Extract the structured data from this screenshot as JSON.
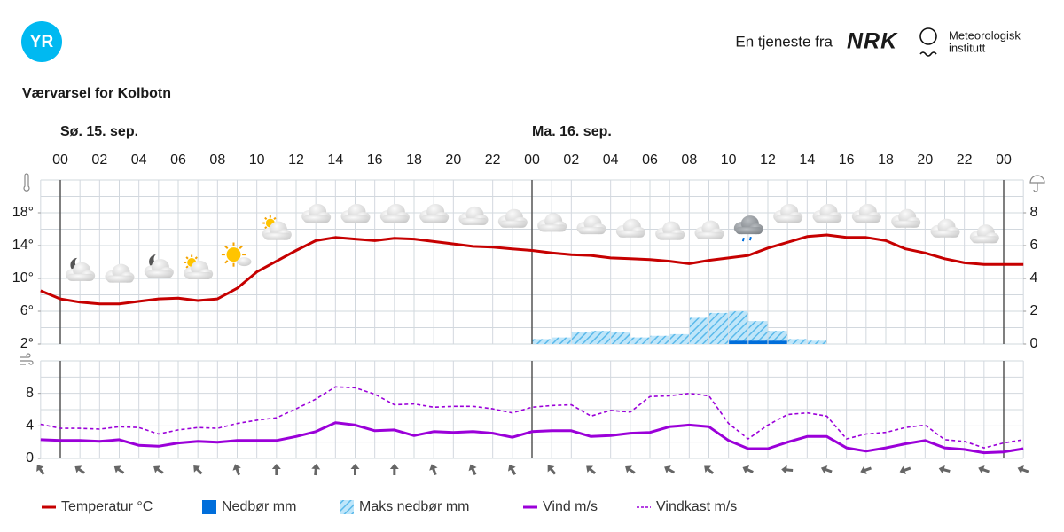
{
  "header": {
    "brand": "YR",
    "service_text": "En tjeneste fra",
    "partner": "NRK",
    "institute_line1": "Meteorologisk",
    "institute_line2": "institutt"
  },
  "chart_data": [
    {
      "type": "line",
      "title": "Værvarsel for Kolbotn",
      "day_labels": [
        {
          "value": 0,
          "label": "Sø. 15. sep."
        },
        {
          "value": 24,
          "label": "Ma. 16. sep."
        }
      ],
      "day_lines": [
        0,
        24,
        48
      ],
      "xlim": [
        -1,
        49
      ],
      "xticks": [
        {
          "value": 0,
          "label": "00"
        },
        {
          "value": 2,
          "label": "02"
        },
        {
          "value": 4,
          "label": "04"
        },
        {
          "value": 6,
          "label": "06"
        },
        {
          "value": 8,
          "label": "08"
        },
        {
          "value": 10,
          "label": "10"
        },
        {
          "value": 12,
          "label": "12"
        },
        {
          "value": 14,
          "label": "14"
        },
        {
          "value": 16,
          "label": "16"
        },
        {
          "value": 18,
          "label": "18"
        },
        {
          "value": 20,
          "label": "20"
        },
        {
          "value": 22,
          "label": "22"
        },
        {
          "value": 24,
          "label": "00"
        },
        {
          "value": 26,
          "label": "02"
        },
        {
          "value": 28,
          "label": "04"
        },
        {
          "value": 30,
          "label": "06"
        },
        {
          "value": 32,
          "label": "08"
        },
        {
          "value": 34,
          "label": "10"
        },
        {
          "value": 36,
          "label": "12"
        },
        {
          "value": 38,
          "label": "14"
        },
        {
          "value": 40,
          "label": "16"
        },
        {
          "value": 42,
          "label": "18"
        },
        {
          "value": 44,
          "label": "20"
        },
        {
          "value": 46,
          "label": "22"
        },
        {
          "value": 48,
          "label": "00"
        }
      ],
      "ylim": [
        2,
        22
      ],
      "yticks": [
        {
          "value": 2,
          "label": "2°"
        },
        {
          "value": 6,
          "label": "6°"
        },
        {
          "value": 10,
          "label": "10°"
        },
        {
          "value": 14,
          "label": "14°"
        },
        {
          "value": 18,
          "label": "18°"
        }
      ],
      "y2lim": [
        0,
        10
      ],
      "y2ticks": [
        0,
        2,
        4,
        6,
        8
      ],
      "grid": true,
      "series": [
        {
          "name": "Temperatur °C",
          "type": "line",
          "color": "#c60000",
          "x": [
            -1,
            0,
            1,
            2,
            3,
            4,
            5,
            6,
            7,
            8,
            9,
            10,
            11,
            12,
            13,
            14,
            15,
            16,
            17,
            18,
            19,
            20,
            21,
            22,
            23,
            24,
            25,
            26,
            27,
            28,
            29,
            30,
            31,
            32,
            33,
            34,
            35,
            36,
            37,
            38,
            39,
            40,
            41,
            42,
            43,
            44,
            45,
            46,
            47,
            48,
            49
          ],
          "values": [
            8.5,
            7.5,
            7.1,
            6.9,
            6.9,
            7.2,
            7.5,
            7.6,
            7.3,
            7.5,
            8.8,
            10.8,
            12.1,
            13.4,
            14.6,
            15.0,
            14.8,
            14.6,
            14.9,
            14.8,
            14.5,
            14.2,
            13.9,
            13.8,
            13.6,
            13.4,
            13.1,
            12.9,
            12.8,
            12.5,
            12.4,
            12.3,
            12.1,
            11.8,
            12.2,
            12.5,
            12.8,
            13.7,
            14.4,
            15.1,
            15.3,
            15.0,
            15.0,
            14.6,
            13.6,
            13.1,
            12.4,
            11.9,
            11.7,
            11.7,
            11.7
          ]
        },
        {
          "name": "Nedbør mm",
          "type": "bar",
          "axis": "y2",
          "color": "#006edb",
          "x": [
            34,
            35,
            36
          ],
          "values": [
            0.2,
            0.2,
            0.2
          ]
        },
        {
          "name": "Maks nedbør mm",
          "type": "hatched-bar",
          "axis": "y2",
          "color": "#5ab9ea",
          "x": [
            24,
            25,
            26,
            27,
            28,
            29,
            30,
            31,
            32,
            33,
            34,
            35,
            36,
            37,
            38
          ],
          "values": [
            0.3,
            0.4,
            0.7,
            0.8,
            0.7,
            0.4,
            0.5,
            0.6,
            1.6,
            1.9,
            2.0,
            1.4,
            0.8,
            0.3,
            0.2
          ]
        }
      ],
      "symbols": {
        "x": [
          1,
          3,
          5,
          7,
          9,
          11,
          13,
          15,
          17,
          19,
          21,
          23,
          25,
          27,
          29,
          31,
          33,
          35,
          37,
          39,
          41,
          43,
          45,
          47
        ],
        "kinds": [
          "night-partly",
          "cloudy",
          "night-partly",
          "day-partly",
          "day-fair",
          "day-partly",
          "cloudy",
          "cloudy",
          "cloudy",
          "cloudy",
          "cloudy",
          "cloudy",
          "cloudy",
          "cloudy",
          "cloudy",
          "cloudy",
          "cloudy",
          "rain",
          "cloudy",
          "cloudy",
          "cloudy",
          "cloudy",
          "cloudy",
          "cloudy"
        ]
      }
    },
    {
      "type": "line",
      "xlim": [
        -1,
        49
      ],
      "ylim": [
        0,
        12
      ],
      "yticks": [
        0,
        4,
        8
      ],
      "grid": true,
      "series": [
        {
          "name": "Vind m/s",
          "color": "#9b00d9",
          "dash": false,
          "x": [
            -1,
            0,
            1,
            2,
            3,
            4,
            5,
            6,
            7,
            8,
            9,
            10,
            11,
            12,
            13,
            14,
            15,
            16,
            17,
            18,
            19,
            20,
            21,
            22,
            23,
            24,
            25,
            26,
            27,
            28,
            29,
            30,
            31,
            32,
            33,
            34,
            35,
            36,
            37,
            38,
            39,
            40,
            41,
            42,
            43,
            44,
            45,
            46,
            47,
            48,
            49
          ],
          "values": [
            2.3,
            2.2,
            2.2,
            2.1,
            2.3,
            1.6,
            1.5,
            1.9,
            2.1,
            2.0,
            2.2,
            2.2,
            2.2,
            2.7,
            3.3,
            4.4,
            4.1,
            3.4,
            3.5,
            2.8,
            3.3,
            3.2,
            3.3,
            3.1,
            2.6,
            3.3,
            3.4,
            3.4,
            2.7,
            2.8,
            3.1,
            3.2,
            3.9,
            4.1,
            3.9,
            2.2,
            1.2,
            1.2,
            2.0,
            2.7,
            2.7,
            1.3,
            0.9,
            1.3,
            1.8,
            2.2,
            1.3,
            1.1,
            0.7,
            0.8,
            1.2
          ]
        },
        {
          "name": "Vindkast m/s",
          "color": "#9b00d9",
          "dash": true,
          "x": [
            -1,
            0,
            1,
            2,
            3,
            4,
            5,
            6,
            7,
            8,
            9,
            10,
            11,
            12,
            13,
            14,
            15,
            16,
            17,
            18,
            19,
            20,
            21,
            22,
            23,
            24,
            25,
            26,
            27,
            28,
            29,
            30,
            31,
            32,
            33,
            34,
            35,
            36,
            37,
            38,
            39,
            40,
            41,
            42,
            43,
            44,
            45,
            46,
            47,
            48,
            49
          ],
          "values": [
            4.2,
            3.7,
            3.7,
            3.6,
            3.9,
            3.8,
            3.0,
            3.5,
            3.8,
            3.7,
            4.3,
            4.7,
            5.0,
            6.1,
            7.3,
            8.8,
            8.7,
            7.9,
            6.6,
            6.7,
            6.3,
            6.4,
            6.4,
            6.1,
            5.6,
            6.3,
            6.5,
            6.6,
            5.2,
            5.9,
            5.7,
            7.6,
            7.7,
            8.0,
            7.7,
            4.3,
            2.4,
            4.1,
            5.4,
            5.6,
            5.2,
            2.4,
            3.0,
            3.2,
            3.8,
            4.1,
            2.3,
            2.1,
            1.3,
            1.9,
            2.3
          ]
        }
      ],
      "wind_direction": {
        "x": [
          -1,
          1,
          3,
          5,
          7,
          9,
          11,
          13,
          15,
          17,
          19,
          21,
          23,
          25,
          27,
          29,
          31,
          33,
          35,
          37,
          39,
          41,
          43,
          45,
          47,
          49
        ],
        "degrees": [
          325,
          305,
          305,
          305,
          315,
          340,
          0,
          5,
          0,
          0,
          340,
          335,
          330,
          320,
          310,
          305,
          300,
          310,
          295,
          275,
          290,
          250,
          250,
          285,
          290,
          290
        ]
      }
    }
  ]
}
